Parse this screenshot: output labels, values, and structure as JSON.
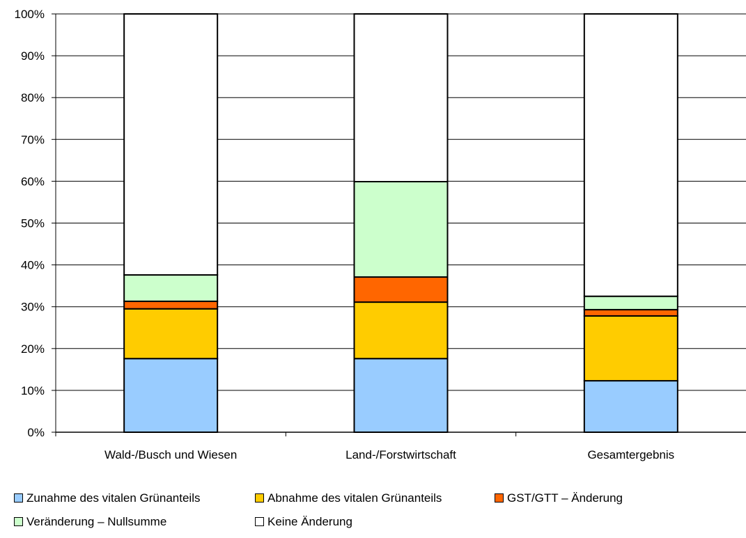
{
  "chart_data": {
    "type": "bar",
    "stacked": true,
    "categories": [
      "Wald-/Busch und Wiesen",
      "Land-/Forstwirtschaft",
      "Gesamtergebnis"
    ],
    "series": [
      {
        "name": "Zunahme des vitalen Grünanteils",
        "color": "#99ccff",
        "values": [
          17.6,
          17.6,
          12.3
        ]
      },
      {
        "name": "Abnahme des vitalen Grünanteils",
        "color": "#ffcc00",
        "values": [
          11.9,
          13.5,
          15.5
        ]
      },
      {
        "name": "GST/GTT – Änderung",
        "color": "#ff6600",
        "values": [
          1.8,
          6.0,
          1.5
        ]
      },
      {
        "name": "Veränderung – Nullsumme",
        "color": "#ccffcc",
        "values": [
          6.3,
          22.8,
          3.2
        ]
      },
      {
        "name": "Keine Änderung",
        "color": "#ffffff",
        "values": [
          62.4,
          40.1,
          67.5
        ]
      }
    ],
    "y_ticks": [
      "0%",
      "10%",
      "20%",
      "30%",
      "40%",
      "50%",
      "60%",
      "70%",
      "80%",
      "90%",
      "100%"
    ],
    "ylim": [
      0,
      100
    ],
    "grid": true,
    "legend_position": "bottom"
  }
}
